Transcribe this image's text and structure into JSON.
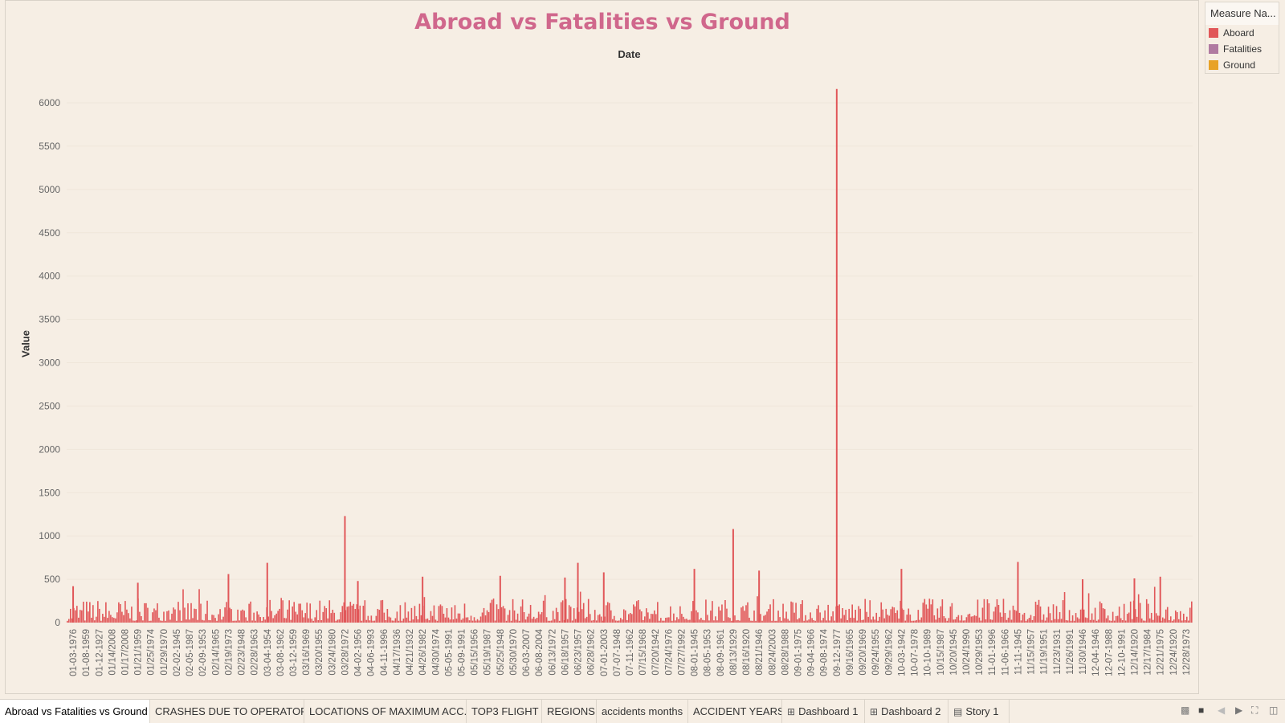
{
  "legend": {
    "title": "Measure Na...",
    "items": [
      {
        "label": "Aboard",
        "color": "#e15759"
      },
      {
        "label": "Fatalities",
        "color": "#b07aa1"
      },
      {
        "label": "Ground",
        "color": "#e8a227"
      }
    ]
  },
  "tabs": [
    {
      "label": "Abroad vs Fatalities vs Ground",
      "icon": "",
      "active": true
    },
    {
      "label": "CRASHES DUE TO OPERATORS",
      "icon": ""
    },
    {
      "label": "LOCATIONS OF MAXIMUM ACC...",
      "icon": ""
    },
    {
      "label": "TOP3 FLIGHT",
      "icon": ""
    },
    {
      "label": "REGIONS",
      "icon": ""
    },
    {
      "label": "accidents months",
      "icon": ""
    },
    {
      "label": "ACCIDENT YEARS",
      "icon": ""
    },
    {
      "label": "Dashboard 1",
      "icon": "dashboard-icon"
    },
    {
      "label": "Dashboard 2",
      "icon": "dashboard-icon"
    },
    {
      "label": "Story 1",
      "icon": "story-icon"
    }
  ],
  "chart_data": {
    "type": "bar",
    "title": "Abroad vs Fatalities vs Ground",
    "xlabel": "Date",
    "ylabel": "Value",
    "ylim": [
      0,
      6200
    ],
    "yticks": [
      0,
      500,
      1000,
      1500,
      2000,
      2500,
      3000,
      3500,
      4000,
      4500,
      5000,
      5500,
      6000
    ],
    "grid": true,
    "legend_position": "top-right",
    "x_tick_labels": [
      "01-03-1976",
      "01-08-1959",
      "01-12-1927",
      "01/14/2008",
      "01/17/2008",
      "01/21/1959",
      "01/25/1974",
      "01/29/1970",
      "02-02-1945",
      "02-05-1987",
      "02-09-1953",
      "02/14/1965",
      "02/19/1973",
      "02/23/1948",
      "02/28/1963",
      "03-04-1954",
      "03-08-1962",
      "03-12-1959",
      "03/16/1969",
      "03/20/1955",
      "03/24/1980",
      "03/28/1972",
      "04-02-1956",
      "04-06-1993",
      "04-11-1996",
      "04/17/1936",
      "04/21/1932",
      "04/26/1982",
      "04/30/1974",
      "05-05-1991",
      "05-09-1991",
      "05/15/1956",
      "05/19/1987",
      "05/25/1948",
      "05/30/1970",
      "06-03-2007",
      "06-08-2004",
      "06/13/1972",
      "06/18/1957",
      "06/23/1957",
      "06/28/1962",
      "07-01-2003",
      "07-07-1948",
      "07-11-1962",
      "07/15/1968",
      "07/20/1942",
      "07/24/1976",
      "07/27/1992",
      "08-01-1945",
      "08-05-1953",
      "08-09-1961",
      "08/13/1929",
      "08/16/1920",
      "08/21/1946",
      "08/24/2003",
      "08/28/1988",
      "09-01-1975",
      "09-04-1966",
      "09-08-1974",
      "09-12-1977",
      "09/16/1965",
      "09/20/1969",
      "09/24/1955",
      "09/29/1962",
      "10-03-1942",
      "10-07-1978",
      "10-10-1989",
      "10/15/1987",
      "10/20/1945",
      "10/24/1990",
      "10/29/1953",
      "11-01-1996",
      "11-06-1966",
      "11-11-1945",
      "11/15/1957",
      "11/19/1951",
      "11/23/1931",
      "11/26/1991",
      "11/30/1946",
      "12-04-1946",
      "12-07-1988",
      "12-10-1991",
      "12/14/1920",
      "12/17/1984",
      "12/21/1975",
      "12/24/1920",
      "12/28/1973"
    ],
    "series": [
      {
        "name": "Aboard",
        "color": "#e15759",
        "peaks": [
          {
            "x": "01-03-1976",
            "value": 420
          },
          {
            "x": "01/21/1959",
            "value": 460
          },
          {
            "x": "02/19/1973",
            "value": 560
          },
          {
            "x": "03-04-1954",
            "value": 690
          },
          {
            "x": "03/28/1972",
            "value": 1230
          },
          {
            "x": "04-02-1956",
            "value": 480
          },
          {
            "x": "04/26/1982",
            "value": 530
          },
          {
            "x": "05/25/1948",
            "value": 540
          },
          {
            "x": "06/18/1957",
            "value": 520
          },
          {
            "x": "06/23/1957",
            "value": 690
          },
          {
            "x": "07-01-2003",
            "value": 580
          },
          {
            "x": "08-01-1945",
            "value": 620
          },
          {
            "x": "08/13/1929",
            "value": 1080
          },
          {
            "x": "08/21/1946",
            "value": 600
          },
          {
            "x": "09-12-1977",
            "value": 6160
          },
          {
            "x": "10-03-1942",
            "value": 620
          },
          {
            "x": "11-11-1945",
            "value": 700
          },
          {
            "x": "11/30/1946",
            "value": 500
          },
          {
            "x": "12/14/1920",
            "value": 510
          },
          {
            "x": "12/21/1975",
            "value": 530
          }
        ]
      }
    ]
  }
}
